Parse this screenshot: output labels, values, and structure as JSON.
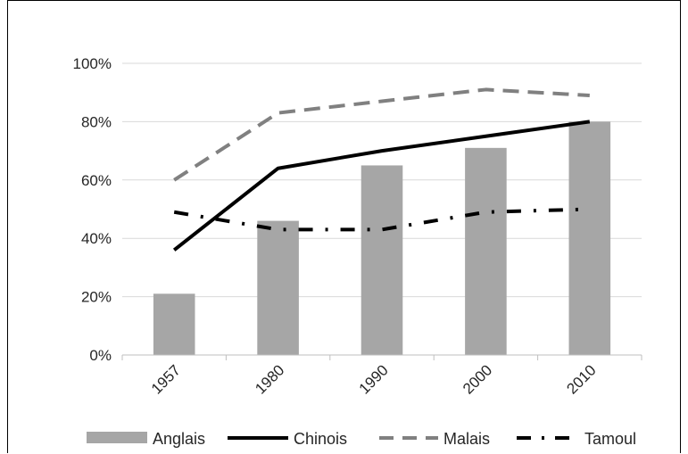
{
  "chart_data": {
    "type": "bar",
    "categories": [
      "1957",
      "1980",
      "1990",
      "2000",
      "2010"
    ],
    "ylim": [
      0,
      100
    ],
    "yticks": [
      "0%",
      "20%",
      "40%",
      "60%",
      "80%",
      "100%"
    ],
    "grid": true,
    "legend_position": "bottom",
    "series": [
      {
        "name": "Anglais",
        "kind": "bar",
        "color": "#a6a6a6",
        "values": [
          21,
          46,
          65,
          71,
          80
        ]
      },
      {
        "name": "Chinois",
        "kind": "line",
        "style": "solid",
        "color": "#000000",
        "values": [
          36,
          64,
          70,
          75,
          80
        ]
      },
      {
        "name": "Malais",
        "kind": "line",
        "style": "dash",
        "color": "#808080",
        "values": [
          60,
          83,
          87,
          91,
          89
        ]
      },
      {
        "name": "Tamoul",
        "kind": "line",
        "style": "dash-dot",
        "color": "#000000",
        "values": [
          49,
          43,
          43,
          49,
          50
        ]
      }
    ]
  }
}
